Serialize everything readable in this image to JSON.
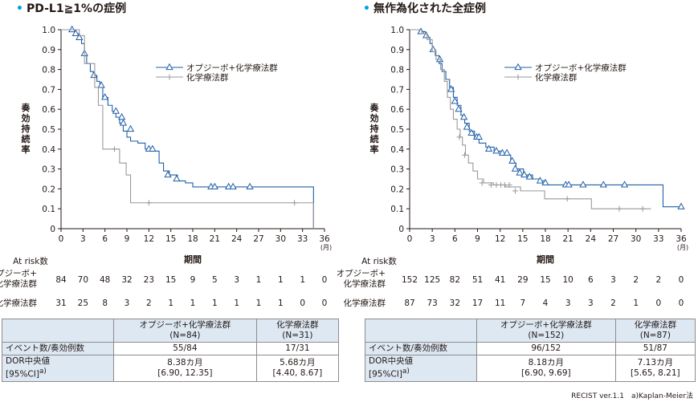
{
  "footnote": "RECIST ver.1.1　a)Kaplan-Meier法",
  "colors": {
    "combo": "#1f5fa6",
    "chemo": "#999999",
    "accent": "#00a0e9",
    "header_bg": "#dde8f3"
  },
  "chart_data": [
    {
      "type": "line",
      "title": "PD-L1≧1%の症例",
      "xlabel": "期間",
      "xunit": "(月)",
      "ylabel": "奏効持続率",
      "xlim": [
        0,
        36
      ],
      "ylim": [
        0,
        1.0
      ],
      "xticks": [
        "0",
        "3",
        "6",
        "9",
        "12",
        "15",
        "18",
        "21",
        "24",
        "27",
        "30",
        "33",
        "36"
      ],
      "yticks": [
        "0",
        "0.1",
        "0.2",
        "0.3",
        "0.4",
        "0.5",
        "0.6",
        "0.7",
        "0.8",
        "0.9",
        "1.0"
      ],
      "legend_position": "top-right",
      "series": [
        {
          "name": "オプジーボ+化学療法群",
          "color": "#1f5fa6",
          "marker": "triangle",
          "x": [
            0,
            1.5,
            2.0,
            2.5,
            2.8,
            3.2,
            3.5,
            4.0,
            4.4,
            4.9,
            5.3,
            5.7,
            6.4,
            7.0,
            7.5,
            8.0,
            8.5,
            9.0,
            9.5,
            10.5,
            11.5,
            12.5,
            13.4,
            14.0,
            14.8,
            15.9,
            17.0,
            18.0,
            34.5,
            34.5
          ],
          "y": [
            1.0,
            1.0,
            0.98,
            0.96,
            0.93,
            0.87,
            0.83,
            0.79,
            0.77,
            0.74,
            0.71,
            0.66,
            0.62,
            0.59,
            0.56,
            0.53,
            0.49,
            0.46,
            0.44,
            0.43,
            0.4,
            0.39,
            0.33,
            0.29,
            0.27,
            0.24,
            0.23,
            0.21,
            0.21,
            0.0
          ],
          "censored": [
            [
              1.5,
              1.0
            ],
            [
              2.0,
              0.98
            ],
            [
              2.5,
              0.96
            ],
            [
              3.2,
              0.88
            ],
            [
              4.5,
              0.77
            ],
            [
              5.5,
              0.72
            ],
            [
              6.0,
              0.66
            ],
            [
              7.5,
              0.59
            ],
            [
              8.3,
              0.56
            ],
            [
              8.5,
              0.53
            ],
            [
              9.5,
              0.5
            ],
            [
              12.0,
              0.4
            ],
            [
              12.5,
              0.4
            ],
            [
              14.6,
              0.27
            ],
            [
              15.8,
              0.25
            ],
            [
              20.5,
              0.21
            ],
            [
              21.0,
              0.21
            ],
            [
              22.9,
              0.21
            ],
            [
              23.5,
              0.21
            ],
            [
              25.8,
              0.21
            ]
          ]
        },
        {
          "name": "化学療法群",
          "color": "#999999",
          "marker": "plus",
          "x": [
            0,
            2.5,
            3.2,
            4.6,
            5.1,
            5.7,
            6.8,
            8.0,
            8.9,
            9.5,
            34.5,
            34.5
          ],
          "y": [
            1.0,
            0.97,
            0.83,
            0.71,
            0.62,
            0.4,
            0.4,
            0.33,
            0.27,
            0.13,
            0.13,
            0.0
          ],
          "censored": [
            [
              7.3,
              0.4
            ],
            [
              12.0,
              0.13
            ],
            [
              31.9,
              0.13
            ]
          ]
        }
      ],
      "at_risk": {
        "label": "At risk数",
        "times": [
          0,
          3,
          6,
          9,
          12,
          15,
          18,
          21,
          24,
          27,
          30,
          33,
          36
        ],
        "rows": [
          {
            "name": "オプジーボ+化学療法群",
            "counts": [
              "84",
              "70",
              "48",
              "32",
              "23",
              "15",
              "9",
              "5",
              "3",
              "1",
              "1",
              "1",
              "0"
            ]
          },
          {
            "name": "化学療法群",
            "counts": [
              "31",
              "25",
              "8",
              "3",
              "2",
              "1",
              "1",
              "1",
              "1",
              "1",
              "1",
              "0",
              "0"
            ]
          }
        ]
      },
      "table": {
        "headers": [
          "",
          "オプジーボ+化学療法群\n(N=84)",
          "化学療法群\n(N=31)"
        ],
        "rows": [
          [
            "イベント数/奏効例数",
            "55/84",
            "17/31"
          ],
          [
            "DOR中央値\n[95%CI]a)",
            "8.38カ月\n[6.90, 12.35]",
            "5.68カ月\n[4.40, 8.67]"
          ]
        ]
      }
    },
    {
      "type": "line",
      "title": "無作為化された全症例",
      "xlabel": "期間",
      "xunit": "(月)",
      "ylabel": "奏効持続率",
      "xlim": [
        0,
        36
      ],
      "ylim": [
        0,
        1.0
      ],
      "xticks": [
        "0",
        "3",
        "6",
        "9",
        "12",
        "15",
        "18",
        "21",
        "24",
        "27",
        "30",
        "33",
        "36"
      ],
      "yticks": [
        "0",
        "0.1",
        "0.2",
        "0.3",
        "0.4",
        "0.5",
        "0.6",
        "0.7",
        "0.8",
        "0.9",
        "1.0"
      ],
      "legend_position": "top-right",
      "series": [
        {
          "name": "オプジーボ+化学療法群",
          "color": "#1f5fa6",
          "marker": "triangle",
          "x": [
            0,
            1.3,
            2.1,
            2.7,
            3.0,
            3.4,
            3.9,
            4.3,
            4.8,
            5.3,
            5.8,
            6.3,
            6.8,
            7.3,
            7.9,
            8.6,
            9.2,
            10.1,
            11.2,
            12.3,
            13.4,
            14.1,
            15.1,
            16.3,
            17.3,
            18.0,
            33.6,
            33.6,
            36.0
          ],
          "y": [
            1.0,
            0.99,
            0.96,
            0.93,
            0.9,
            0.87,
            0.83,
            0.79,
            0.75,
            0.71,
            0.66,
            0.62,
            0.57,
            0.53,
            0.49,
            0.46,
            0.43,
            0.41,
            0.39,
            0.37,
            0.33,
            0.3,
            0.27,
            0.25,
            0.24,
            0.22,
            0.22,
            0.11,
            0.11
          ],
          "censored": [
            [
              1.5,
              0.99
            ],
            [
              2.2,
              0.97
            ],
            [
              3.1,
              0.9
            ],
            [
              4.0,
              0.85
            ],
            [
              5.5,
              0.7
            ],
            [
              6.0,
              0.64
            ],
            [
              6.5,
              0.6
            ],
            [
              7.2,
              0.56
            ],
            [
              7.6,
              0.51
            ],
            [
              8.2,
              0.48
            ],
            [
              8.9,
              0.46
            ],
            [
              9.2,
              0.46
            ],
            [
              10.5,
              0.4
            ],
            [
              11.5,
              0.39
            ],
            [
              12.3,
              0.38
            ],
            [
              12.9,
              0.38
            ],
            [
              13.6,
              0.34
            ],
            [
              14.0,
              0.3
            ],
            [
              14.6,
              0.28
            ],
            [
              15.2,
              0.27
            ],
            [
              15.9,
              0.26
            ],
            [
              17.3,
              0.24
            ],
            [
              18.0,
              0.23
            ],
            [
              20.7,
              0.22
            ],
            [
              21.1,
              0.22
            ],
            [
              23.0,
              0.22
            ],
            [
              25.7,
              0.22
            ],
            [
              28.5,
              0.22
            ],
            [
              36.0,
              0.11
            ]
          ]
        },
        {
          "name": "化学療法群",
          "color": "#999999",
          "marker": "plus",
          "x": [
            0,
            1.6,
            2.3,
            3.0,
            3.5,
            4.1,
            4.6,
            5.0,
            5.4,
            5.8,
            6.3,
            6.7,
            7.0,
            7.4,
            7.8,
            8.4,
            9.0,
            9.8,
            11.1,
            12.7,
            14.7,
            17.9,
            24.1,
            32.0
          ],
          "y": [
            1.0,
            0.98,
            0.95,
            0.89,
            0.85,
            0.8,
            0.74,
            0.66,
            0.6,
            0.55,
            0.5,
            0.46,
            0.42,
            0.37,
            0.33,
            0.29,
            0.25,
            0.23,
            0.22,
            0.21,
            0.19,
            0.15,
            0.1,
            0.1
          ],
          "censored": [
            [
              6.6,
              0.46
            ],
            [
              7.3,
              0.37
            ],
            [
              9.6,
              0.23
            ],
            [
              10.8,
              0.22
            ],
            [
              11.5,
              0.22
            ],
            [
              12.1,
              0.22
            ],
            [
              12.6,
              0.22
            ],
            [
              13.2,
              0.22
            ],
            [
              14.0,
              0.19
            ],
            [
              20.9,
              0.15
            ],
            [
              27.8,
              0.1
            ],
            [
              30.9,
              0.1
            ]
          ]
        }
      ],
      "at_risk": {
        "label": "At risk数",
        "times": [
          0,
          3,
          6,
          9,
          12,
          15,
          18,
          21,
          24,
          27,
          30,
          33,
          36
        ],
        "rows": [
          {
            "name": "オプジーボ+化学療法群",
            "counts": [
              "152",
              "125",
              "82",
              "51",
              "41",
              "29",
              "15",
              "10",
              "6",
              "3",
              "2",
              "2",
              "0"
            ]
          },
          {
            "name": "化学療法群",
            "counts": [
              "87",
              "73",
              "32",
              "17",
              "11",
              "7",
              "4",
              "3",
              "3",
              "2",
              "1",
              "0",
              "0"
            ]
          }
        ]
      },
      "table": {
        "headers": [
          "",
          "オプジーボ+化学療法群\n(N=152)",
          "化学療法群\n(N=87)"
        ],
        "rows": [
          [
            "イベント数/奏効例数",
            "96/152",
            "51/87"
          ],
          [
            "DOR中央値\n[95%CI]a)",
            "8.18カ月\n[6.90, 9.69]",
            "7.13カ月\n[5.65, 8.21]"
          ]
        ]
      }
    }
  ]
}
